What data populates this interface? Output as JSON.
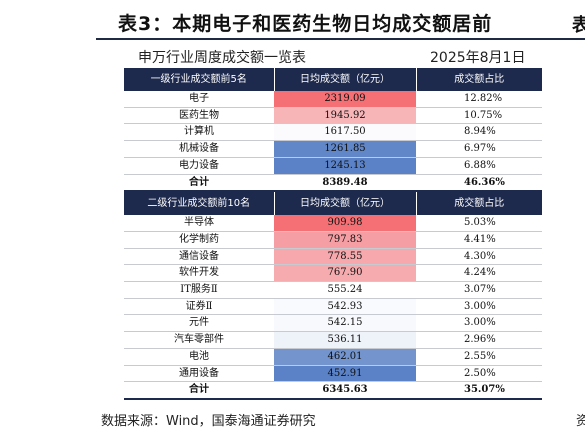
{
  "header": {
    "title": "表3：本期电子和医药生物日均成交额居前",
    "right_fragment": "表"
  },
  "subtitle": {
    "left": "申万行业周度成交额一览表",
    "right": "2025年8月1日"
  },
  "section1": {
    "headers": [
      "一级行业成交额前5名",
      "日均成交额（亿元）",
      "成交额占比"
    ],
    "rows": [
      {
        "name": "电子",
        "value": "2319.09",
        "share": "12.82%",
        "color": "#f47075"
      },
      {
        "name": "医药生物",
        "value": "1945.92",
        "share": "10.75%",
        "color": "#f7b5b8"
      },
      {
        "name": "计算机",
        "value": "1617.50",
        "share": "8.94%",
        "color": "#fbfbfd"
      },
      {
        "name": "机械设备",
        "value": "1261.85",
        "share": "6.97%",
        "color": "#6187c9"
      },
      {
        "name": "电力设备",
        "value": "1245.13",
        "share": "6.88%",
        "color": "#5b82c6"
      }
    ],
    "total": {
      "name": "合计",
      "value": "8389.48",
      "share": "46.36%"
    }
  },
  "section2": {
    "headers": [
      "二级行业成交额前10名",
      "日均成交额（亿元）",
      "成交额占比"
    ],
    "rows": [
      {
        "name": "半导体",
        "value": "909.98",
        "share": "5.03%",
        "color": "#f47075"
      },
      {
        "name": "化学制药",
        "value": "797.83",
        "share": "4.41%",
        "color": "#f59ea3"
      },
      {
        "name": "通信设备",
        "value": "778.55",
        "share": "4.30%",
        "color": "#f6a8ac"
      },
      {
        "name": "软件开发",
        "value": "767.90",
        "share": "4.24%",
        "color": "#f6abaf"
      },
      {
        "name": "IT服务Ⅱ",
        "value": "555.24",
        "share": "3.07%",
        "color": "#ffffff"
      },
      {
        "name": "证券Ⅱ",
        "value": "542.93",
        "share": "3.00%",
        "color": "#f9fafd"
      },
      {
        "name": "元件",
        "value": "542.15",
        "share": "3.00%",
        "color": "#f8f9fc"
      },
      {
        "name": "汽车零部件",
        "value": "536.11",
        "share": "2.96%",
        "color": "#eef2f9"
      },
      {
        "name": "电池",
        "value": "462.01",
        "share": "2.55%",
        "color": "#7394cd"
      },
      {
        "name": "通用设备",
        "value": "452.91",
        "share": "2.50%",
        "color": "#5b82c6"
      }
    ],
    "total": {
      "name": "合计",
      "value": "6345.63",
      "share": "35.07%"
    }
  },
  "source": {
    "text": "数据来源：Wind，国泰海通证券研究",
    "right_fragment": "资"
  }
}
